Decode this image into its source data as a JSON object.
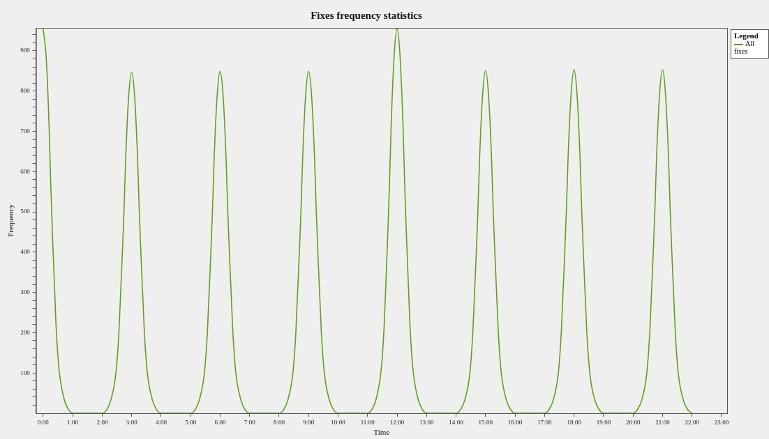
{
  "chart_data": {
    "type": "line",
    "title": "Fixes frequency statistics",
    "xlabel": "Time",
    "ylabel": "Frequency",
    "legend_title": "Legend",
    "legend": "right",
    "grid": false,
    "marker": "none",
    "line_style": "solid",
    "xlim": [
      -0.24,
      23.19
    ],
    "xticks": [
      {
        "value": 0,
        "label": "0:00"
      },
      {
        "value": 1,
        "label": "1:00"
      },
      {
        "value": 2,
        "label": "2:00"
      },
      {
        "value": 3,
        "label": "3:00"
      },
      {
        "value": 4,
        "label": "4:00"
      },
      {
        "value": 5,
        "label": "5:00"
      },
      {
        "value": 6,
        "label": "6:00"
      },
      {
        "value": 7,
        "label": "7:00"
      },
      {
        "value": 8,
        "label": "8:00"
      },
      {
        "value": 9,
        "label": "9:00"
      },
      {
        "value": 10,
        "label": "10:00"
      },
      {
        "value": 11,
        "label": "11:00"
      },
      {
        "value": 12,
        "label": "12:00"
      },
      {
        "value": 13,
        "label": "13:00"
      },
      {
        "value": 14,
        "label": "14:00"
      },
      {
        "value": 15,
        "label": "15:00"
      },
      {
        "value": 16,
        "label": "16:00"
      },
      {
        "value": 17,
        "label": "17:00"
      },
      {
        "value": 18,
        "label": "18:00"
      },
      {
        "value": 19,
        "label": "19:00"
      },
      {
        "value": 20,
        "label": "20:00"
      },
      {
        "value": 21,
        "label": "21:00"
      },
      {
        "value": 22,
        "label": "22:00"
      },
      {
        "value": 23,
        "label": "23:00"
      }
    ],
    "ylim": [
      0,
      957
    ],
    "yticks": [
      {
        "value": 20,
        "label": null
      },
      {
        "value": 40,
        "label": null
      },
      {
        "value": 60,
        "label": null
      },
      {
        "value": 80,
        "label": null
      },
      100,
      {
        "value": 120,
        "label": null
      },
      {
        "value": 140,
        "label": null
      },
      {
        "value": 160,
        "label": null
      },
      {
        "value": 180,
        "label": null
      },
      200,
      {
        "value": 220,
        "label": null
      },
      {
        "value": 240,
        "label": null
      },
      {
        "value": 260,
        "label": null
      },
      {
        "value": 280,
        "label": null
      },
      300,
      {
        "value": 320,
        "label": null
      },
      {
        "value": 340,
        "label": null
      },
      {
        "value": 360,
        "label": null
      },
      {
        "value": 380,
        "label": null
      },
      400,
      {
        "value": 420,
        "label": null
      },
      {
        "value": 440,
        "label": null
      },
      {
        "value": 460,
        "label": null
      },
      {
        "value": 480,
        "label": null
      },
      500,
      {
        "value": 520,
        "label": null
      },
      {
        "value": 540,
        "label": null
      },
      {
        "value": 560,
        "label": null
      },
      {
        "value": 580,
        "label": null
      },
      600,
      {
        "value": 620,
        "label": null
      },
      {
        "value": 640,
        "label": null
      },
      {
        "value": 660,
        "label": null
      },
      {
        "value": 680,
        "label": null
      },
      700,
      {
        "value": 720,
        "label": null
      },
      {
        "value": 740,
        "label": null
      },
      {
        "value": 760,
        "label": null
      },
      {
        "value": 780,
        "label": null
      },
      800,
      {
        "value": 820,
        "label": null
      },
      {
        "value": 840,
        "label": null
      },
      {
        "value": 860,
        "label": null
      },
      {
        "value": 880,
        "label": null
      },
      900,
      {
        "value": 920,
        "label": null
      },
      {
        "value": 940,
        "label": null
      }
    ],
    "series": [
      {
        "name": "All fixes",
        "color": "#5fa11c",
        "x": [
          0,
          0.1,
          0.2,
          0.26,
          0.3,
          0.43,
          0.53,
          0.7,
          0.85,
          1,
          2,
          2.15,
          2.3,
          2.47,
          2.57,
          2.7,
          2.74,
          2.8,
          2.9,
          3,
          3.1,
          3.2,
          3.26,
          3.3,
          3.43,
          3.53,
          3.7,
          3.85,
          4,
          5,
          5.15,
          5.3,
          5.47,
          5.57,
          5.7,
          5.74,
          5.8,
          5.9,
          6,
          6.1,
          6.2,
          6.26,
          6.3,
          6.43,
          6.53,
          6.7,
          6.85,
          7,
          8,
          8.15,
          8.3,
          8.47,
          8.57,
          8.7,
          8.74,
          8.8,
          8.9,
          9,
          9.1,
          9.2,
          9.26,
          9.3,
          9.43,
          9.53,
          9.7,
          9.85,
          10,
          11,
          11.15,
          11.3,
          11.47,
          11.57,
          11.7,
          11.74,
          11.8,
          11.9,
          12,
          12.1,
          12.2,
          12.26,
          12.3,
          12.43,
          12.53,
          12.7,
          12.85,
          13,
          14,
          14.15,
          14.3,
          14.47,
          14.57,
          14.7,
          14.74,
          14.8,
          14.9,
          15,
          15.1,
          15.2,
          15.26,
          15.3,
          15.43,
          15.53,
          15.7,
          15.85,
          16,
          17,
          17.15,
          17.3,
          17.47,
          17.57,
          17.7,
          17.74,
          17.8,
          17.9,
          18,
          18.1,
          18.2,
          18.26,
          18.3,
          18.43,
          18.53,
          18.7,
          18.85,
          19,
          20,
          20.15,
          20.3,
          20.47,
          20.57,
          20.7,
          20.74,
          20.8,
          20.9,
          21,
          21.1,
          21.2,
          21.26,
          21.3,
          21.43,
          21.53,
          21.7,
          21.85,
          22
        ],
        "values": [
          955,
          888,
          716,
          563,
          478,
          229,
          115,
          38,
          10,
          0,
          0,
          8,
          34,
          102,
          203,
          424,
          500,
          635,
          788,
          847,
          788,
          635,
          500,
          424,
          203,
          102,
          34,
          8,
          0,
          0,
          8,
          34,
          102,
          204,
          425,
          501,
          637,
          790,
          849,
          790,
          637,
          501,
          425,
          204,
          102,
          34,
          8,
          0,
          0,
          8,
          34,
          102,
          204,
          425,
          501,
          637,
          790,
          849,
          790,
          637,
          501,
          425,
          204,
          102,
          34,
          8,
          0,
          0,
          10,
          38,
          115,
          229,
          478,
          563,
          716,
          888,
          955,
          888,
          716,
          563,
          478,
          229,
          115,
          38,
          10,
          0,
          0,
          9,
          34,
          102,
          204,
          426,
          502,
          638,
          791,
          851,
          791,
          638,
          502,
          426,
          204,
          102,
          34,
          9,
          0,
          0,
          9,
          34,
          102,
          205,
          427,
          503,
          640,
          793,
          853,
          793,
          640,
          503,
          427,
          205,
          102,
          34,
          9,
          0,
          0,
          9,
          34,
          102,
          205,
          427,
          503,
          640,
          793,
          853,
          793,
          640,
          503,
          427,
          205,
          102,
          34,
          9,
          0
        ]
      }
    ]
  }
}
